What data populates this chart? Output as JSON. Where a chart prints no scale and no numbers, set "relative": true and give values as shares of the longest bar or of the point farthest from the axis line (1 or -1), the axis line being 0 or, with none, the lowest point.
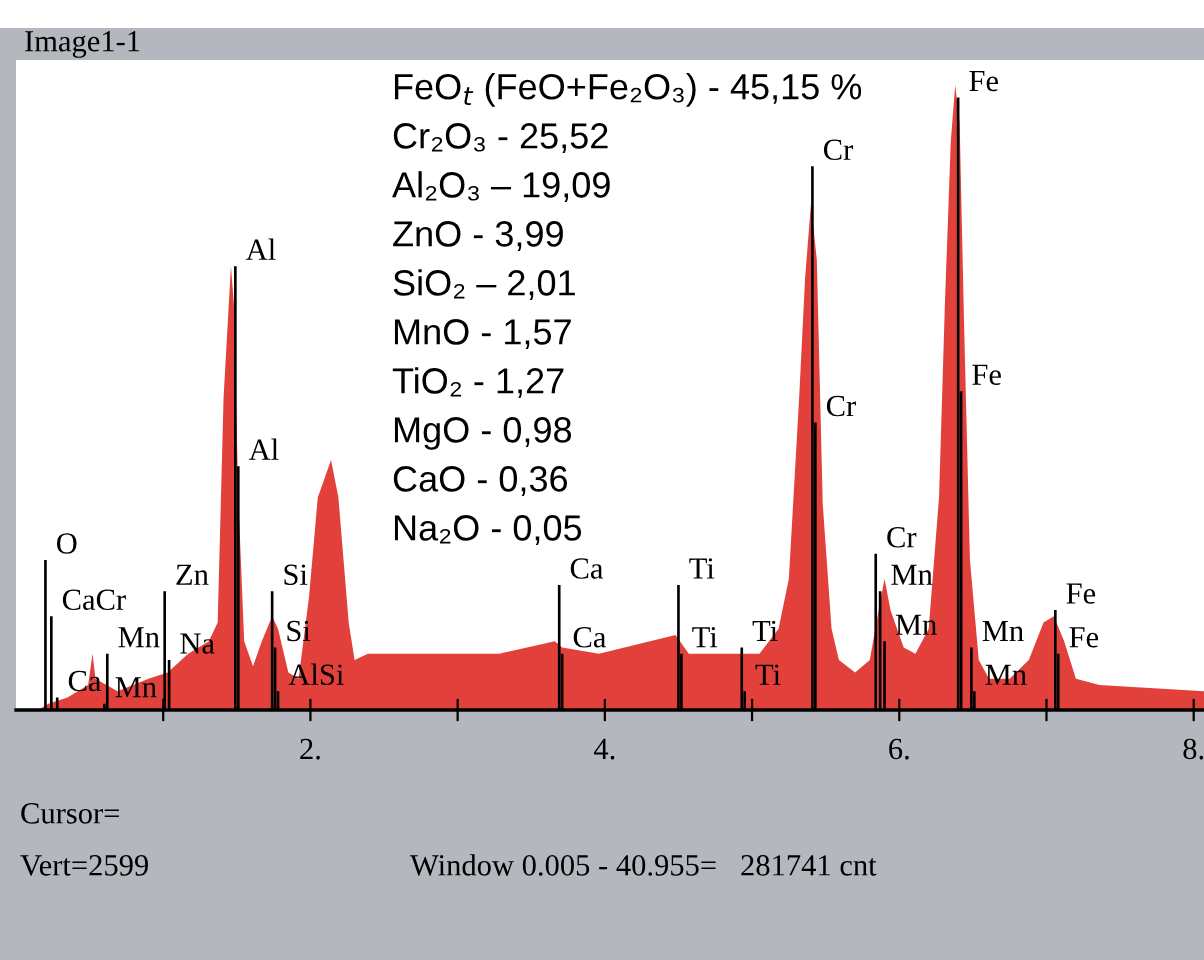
{
  "chart_data": {
    "type": "area",
    "title": "Image1-1",
    "relative": true,
    "xlim": [
      0,
      8.07
    ],
    "xticks": [
      {
        "value": 1,
        "label": null
      },
      {
        "value": 2,
        "label": "2."
      },
      {
        "value": 3,
        "label": null
      },
      {
        "value": 4,
        "label": "4."
      },
      {
        "value": 5,
        "label": null
      },
      {
        "value": 6,
        "label": "6."
      },
      {
        "value": 7,
        "label": null
      },
      {
        "value": 8,
        "label": "8."
      }
    ],
    "series": [
      {
        "color": "#e2403b",
        "x": [
          0.15,
          0.22,
          0.35,
          0.49,
          0.52,
          0.54,
          0.69,
          0.9,
          1.03,
          1.17,
          1.24,
          1.31,
          1.37,
          1.41,
          1.46,
          1.48,
          1.51,
          1.55,
          1.61,
          1.67,
          1.74,
          1.78,
          1.85,
          1.92,
          1.99,
          2.05,
          2.14,
          2.19,
          2.26,
          2.3,
          2.39,
          2.6,
          3.28,
          3.66,
          3.71,
          3.96,
          4.48,
          4.57,
          4.91,
          5.05,
          5.18,
          5.25,
          5.32,
          5.36,
          5.4,
          5.44,
          5.48,
          5.54,
          5.59,
          5.7,
          5.8,
          5.86,
          5.9,
          5.94,
          6.03,
          6.11,
          6.2,
          6.27,
          6.31,
          6.35,
          6.38,
          6.41,
          6.44,
          6.48,
          6.54,
          6.61,
          6.75,
          6.88,
          6.98,
          7.05,
          7.12,
          7.2,
          7.36,
          8.07
        ],
        "values": [
          0,
          0.01,
          0.02,
          0.04,
          0.09,
          0.05,
          0.03,
          0.05,
          0.06,
          0.09,
          0.1,
          0.11,
          0.14,
          0.5,
          0.71,
          0.65,
          0.34,
          0.11,
          0.07,
          0.11,
          0.15,
          0.13,
          0.06,
          0.05,
          0.18,
          0.34,
          0.4,
          0.34,
          0.14,
          0.08,
          0.09,
          0.09,
          0.09,
          0.11,
          0.1,
          0.09,
          0.12,
          0.09,
          0.09,
          0.09,
          0.13,
          0.21,
          0.5,
          0.69,
          0.81,
          0.72,
          0.33,
          0.13,
          0.08,
          0.06,
          0.08,
          0.16,
          0.21,
          0.16,
          0.1,
          0.09,
          0.13,
          0.34,
          0.65,
          0.91,
          1.0,
          0.94,
          0.62,
          0.24,
          0.08,
          0.05,
          0.05,
          0.08,
          0.14,
          0.15,
          0.11,
          0.05,
          0.04,
          0.03
        ]
      },
      {
        "type": "bar",
        "color": "#000000",
        "x": [
          0.2,
          0.24,
          0.28,
          0.6,
          0.62,
          1.01,
          1.04,
          1.49,
          1.51,
          1.74,
          1.76,
          1.78,
          3.69,
          3.71,
          4.5,
          4.52,
          4.93,
          4.95,
          5.41,
          5.43,
          5.84,
          5.87,
          5.9,
          6.4,
          6.42,
          6.49,
          6.51,
          7.06,
          7.08
        ],
        "values": [
          0.24,
          0.15,
          0.02,
          0.01,
          0.09,
          0.19,
          0.08,
          0.71,
          0.39,
          0.19,
          0.1,
          0.03,
          0.2,
          0.09,
          0.2,
          0.09,
          0.1,
          0.03,
          0.87,
          0.46,
          0.25,
          0.19,
          0.11,
          0.98,
          0.51,
          0.1,
          0.03,
          0.16,
          0.09
        ]
      }
    ],
    "annotations": [
      "FeO$_{t}$ (FeO+Fe₂O₃) - 45,15 %",
      "Cr₂O₃ - 25,52",
      "Al₂O₃ – 19,09",
      "ZnO - 3,99",
      "SiO₂ – 2,01",
      "MnO - 1,57",
      "TiO₂ - 1,27",
      "MgO - 0,98",
      "CaO - 0,36",
      "Na₂O - 0,05",
      {
        "text": "Al",
        "x": 1.49,
        "y": 0.71
      },
      {
        "text": "Al",
        "x": 1.51,
        "y": 0.39
      },
      {
        "text": "Fe",
        "x": 6.4,
        "y": 0.98
      },
      {
        "text": "Fe",
        "x": 6.42,
        "y": 0.51
      },
      {
        "text": "Cr",
        "x": 5.41,
        "y": 0.87
      },
      {
        "text": "Cr",
        "x": 5.43,
        "y": 0.46
      },
      {
        "text": "Cr",
        "x": 5.84,
        "y": 0.25
      },
      {
        "text": "Mn",
        "x": 5.87,
        "y": 0.19
      },
      {
        "text": "Mn",
        "x": 5.9,
        "y": 0.11
      },
      {
        "text": "Mn",
        "x": 6.49,
        "y": 0.1
      },
      {
        "text": "Mn",
        "x": 6.51,
        "y": 0.03
      },
      {
        "text": "Fe",
        "x": 7.06,
        "y": 0.16
      },
      {
        "text": "Fe",
        "x": 7.08,
        "y": 0.09
      },
      {
        "text": "Ti",
        "x": 4.5,
        "y": 0.2
      },
      {
        "text": "Ti",
        "x": 4.52,
        "y": 0.09
      },
      {
        "text": "Ti",
        "x": 4.93,
        "y": 0.1
      },
      {
        "text": "Ti",
        "x": 4.95,
        "y": 0.03
      },
      {
        "text": "Ca",
        "x": 3.69,
        "y": 0.2
      },
      {
        "text": "Ca",
        "x": 3.71,
        "y": 0.09
      },
      {
        "text": "Si",
        "x": 1.74,
        "y": 0.19
      },
      {
        "text": "Si",
        "x": 1.76,
        "y": 0.1
      },
      {
        "text": "AlSi",
        "x": 1.78,
        "y": 0.03
      },
      {
        "text": "Zn",
        "x": 1.01,
        "y": 0.19
      },
      {
        "text": "Na",
        "x": 1.04,
        "y": 0.08
      },
      {
        "text": "Mn",
        "x": 0.62,
        "y": 0.09
      },
      {
        "text": "O",
        "x": 0.2,
        "y": 0.24
      },
      {
        "text": "CaCr",
        "x": 0.24,
        "y": 0.15
      },
      {
        "text": "Ca",
        "x": 0.28,
        "y": 0.02
      },
      {
        "text": "Mn",
        "x": 0.6,
        "y": 0.01
      },
      "Cursor=",
      "Vert=2599",
      "Window 0.005 - 40.955=   281741 cnt"
    ]
  }
}
